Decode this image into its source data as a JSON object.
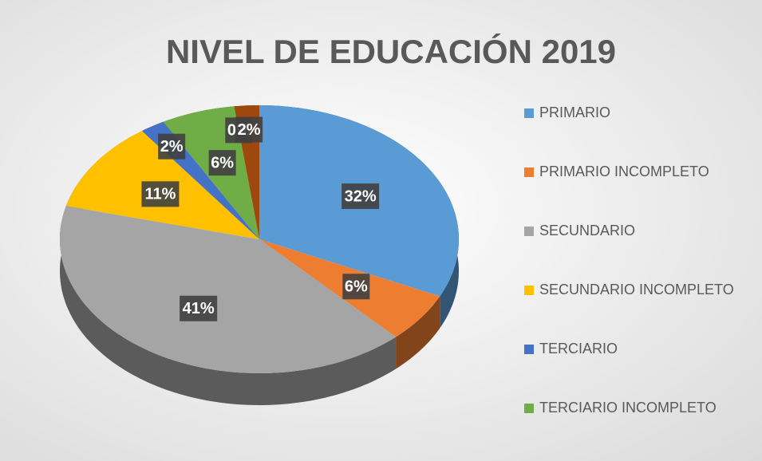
{
  "chart_data": {
    "type": "pie",
    "title": "NIVEL DE EDUCACIÓN 2019",
    "categories": [
      "PRIMARIO",
      "PRIMARIO INCOMPLETO",
      "SECUNDARIO",
      "SECUNDARIO INCOMPLETO",
      "TERCIARIO",
      "TERCIARIO INCOMPLETO",
      null,
      null
    ],
    "values": [
      32,
      6,
      41,
      11,
      2,
      6,
      0,
      2
    ],
    "value_labels": [
      "32%",
      "6%",
      "41%",
      "11%",
      "2%",
      "6%",
      "0%",
      "2%"
    ],
    "colors": [
      "#5b9bd5",
      "#ed7d31",
      "#a5a5a5",
      "#ffc000",
      "#4472c4",
      "#70ad47",
      "#264478",
      "#9e480e"
    ],
    "legend": "right"
  }
}
